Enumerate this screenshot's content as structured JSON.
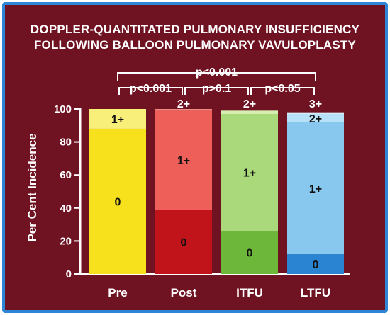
{
  "chart_data": {
    "type": "bar",
    "stacked": true,
    "title_lines": [
      "DOPPLER-QUANTITATED PULMONARY INSUFFICIENCY",
      "FOLLOWING BALLOON PULMONARY VAVULOPLASTY"
    ],
    "ylabel": "Per Cent Incidence",
    "xlabel": "",
    "ylim": [
      0,
      100
    ],
    "yticks": [
      "0",
      "20",
      "40",
      "60",
      "80",
      "100"
    ],
    "categories": [
      "Pre",
      "Post",
      "ITFU",
      "LTFU"
    ],
    "grid": false,
    "bars": [
      {
        "category": "Pre",
        "segments": [
          {
            "grade": "0",
            "value": 88,
            "color": "#f7e11c"
          },
          {
            "grade": "1+",
            "value": 12,
            "color": "#f7ef7a"
          }
        ]
      },
      {
        "category": "Post",
        "segments": [
          {
            "grade": "0",
            "value": 39,
            "color": "#c0141a"
          },
          {
            "grade": "1+",
            "value": 60,
            "color": "#ee5f5a"
          },
          {
            "grade": "2+",
            "value": 1,
            "color": "#f08b86"
          }
        ]
      },
      {
        "category": "ITFU",
        "segments": [
          {
            "grade": "0",
            "value": 26,
            "color": "#6db83a"
          },
          {
            "grade": "1+",
            "value": 71,
            "color": "#a9d97a"
          },
          {
            "grade": "2+",
            "value": 2,
            "color": "#d6eeb4"
          }
        ]
      },
      {
        "category": "LTFU",
        "segments": [
          {
            "grade": "0",
            "value": 12,
            "color": "#2a84d2"
          },
          {
            "grade": "1+",
            "value": 80,
            "color": "#88c8ee"
          },
          {
            "grade": "2+",
            "value": 5,
            "color": "#b8e0f6"
          },
          {
            "grade": "3+",
            "value": 1,
            "color": "#d8eefa"
          }
        ]
      }
    ],
    "above_bar_labels": [
      {
        "category": "Post",
        "text": "2+"
      },
      {
        "category": "ITFU",
        "text": "2+"
      },
      {
        "category": "LTFU",
        "text": "3+"
      }
    ],
    "significance": [
      {
        "from": "Pre",
        "to": "Post",
        "text": "p<0.001"
      },
      {
        "from": "Post",
        "to": "ITFU",
        "text": "p>0.1"
      },
      {
        "from": "ITFU",
        "to": "LTFU",
        "text": "p<0.05"
      },
      {
        "from": "Pre",
        "to": "LTFU",
        "text": "p<0.001"
      }
    ]
  },
  "colors": {
    "background": "#6f1222",
    "border": "#2f86d6",
    "axis": "#ffffff",
    "text": "#ffffff"
  }
}
